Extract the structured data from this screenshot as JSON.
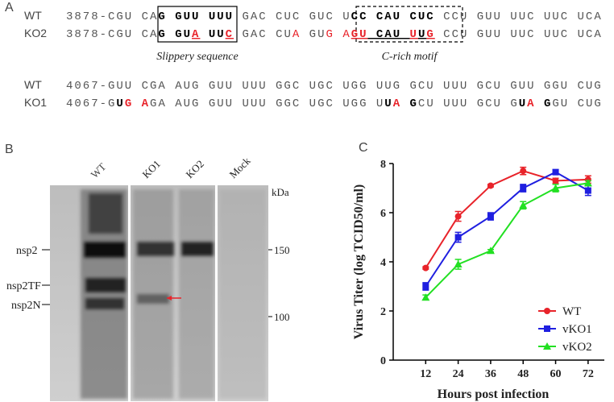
{
  "panel_a": {
    "label": "A",
    "rows": [
      {
        "label": "WT",
        "segments": [
          {
            "text": "3878-CGU CA"
          },
          {
            "text": "G GUU UUU",
            "bold": true
          },
          {
            "text": " GAC CUC GUC U"
          },
          {
            "text": "CC CAU CUC",
            "bold": true
          },
          {
            "text": " CCU GUU UUC UUC UCA"
          }
        ]
      },
      {
        "label": "KO2",
        "segments": [
          {
            "text": "3878-CGU CA"
          },
          {
            "text": "G GU",
            "bold": true
          },
          {
            "text": "A",
            "bold": true,
            "color": "#e8232a",
            "underline": true
          },
          {
            "text": " UU",
            "bold": true
          },
          {
            "text": "C",
            "bold": true,
            "color": "#e8232a",
            "underline": true
          },
          {
            "text": " GAC CU"
          },
          {
            "text": "A",
            "color": "#e8232a"
          },
          {
            "text": " GU"
          },
          {
            "text": "G",
            "color": "#e8232a"
          },
          {
            "text": " "
          },
          {
            "text": "A",
            "color": "#e8232a"
          },
          {
            "text": "GU",
            "bold": true,
            "color": "#e8232a",
            "underline": true
          },
          {
            "text": " CAU ",
            "bold": true,
            "underline": true
          },
          {
            "text": "U",
            "bold": true,
            "color": "#e8232a",
            "underline": true
          },
          {
            "text": "U",
            "bold": true,
            "underline": true
          },
          {
            "text": "G",
            "bold": true,
            "color": "#e8232a",
            "underline": true
          },
          {
            "text": " CCU GUU UUC UUC UCA"
          }
        ]
      },
      {
        "label": "WT",
        "segments": [
          {
            "text": "4067-GUU CGA AUG GUU UUU GGC UGC UGG UUG GCU UUU GCU GUU GGU CUG"
          }
        ]
      },
      {
        "label": "KO1",
        "segments": [
          {
            "text": "4067-G"
          },
          {
            "text": "U",
            "bold": true
          },
          {
            "text": "G",
            "bold": true,
            "color": "#e8232a"
          },
          {
            "text": " "
          },
          {
            "text": "A",
            "bold": true,
            "color": "#e8232a"
          },
          {
            "text": "GA AUG GUU UUU GGC UGC UGG U"
          },
          {
            "text": "U",
            "bold": true
          },
          {
            "text": "A",
            "bold": true,
            "color": "#e8232a"
          },
          {
            "text": " "
          },
          {
            "text": "G",
            "bold": true
          },
          {
            "text": "CU UUU GCU G"
          },
          {
            "text": "U",
            "bold": true
          },
          {
            "text": "A",
            "bold": true,
            "color": "#e8232a"
          },
          {
            "text": " "
          },
          {
            "text": "G",
            "bold": true
          },
          {
            "text": "GU CUG"
          }
        ]
      }
    ],
    "captions": [
      "Slippery sequence",
      "C-rich motif"
    ]
  },
  "panel_b": {
    "label": "B",
    "lanes": [
      "WT",
      "KO1",
      "KO2",
      "Mock"
    ],
    "unit": "kDa",
    "markers": [
      150,
      100
    ],
    "bands": [
      "nsp2",
      "nsp2TF",
      "nsp2N"
    ]
  },
  "chart_data": {
    "type": "line",
    "panel_label": "C",
    "x_label": "Hours post infection",
    "y_label": "Virus Titer (log TCID50/ml)",
    "x": [
      12,
      24,
      36,
      48,
      60,
      72
    ],
    "xlim": [
      0,
      78
    ],
    "xticks": [
      12,
      24,
      36,
      48,
      60,
      72
    ],
    "ylim": [
      0,
      8
    ],
    "yticks": [
      0,
      2,
      4,
      6,
      8
    ],
    "legend": "lower right",
    "series": [
      {
        "name": "WT",
        "color": "#e8232a",
        "marker": "circle",
        "values": [
          3.75,
          5.85,
          7.1,
          7.7,
          7.3,
          7.35
        ],
        "errors": [
          0.05,
          0.2,
          0.05,
          0.15,
          0.1,
          0.15
        ]
      },
      {
        "name": "vKO1",
        "color": "#1f1fe0",
        "marker": "square",
        "values": [
          3.0,
          5.0,
          5.85,
          7.0,
          7.65,
          6.9
        ],
        "errors": [
          0.15,
          0.2,
          0.15,
          0.15,
          0.1,
          0.2
        ]
      },
      {
        "name": "vKO2",
        "color": "#22e022",
        "marker": "triangle",
        "values": [
          2.55,
          3.9,
          4.45,
          6.3,
          7.0,
          7.2
        ],
        "errors": [
          0.1,
          0.2,
          0.05,
          0.15,
          0.15,
          0.1
        ]
      }
    ]
  }
}
